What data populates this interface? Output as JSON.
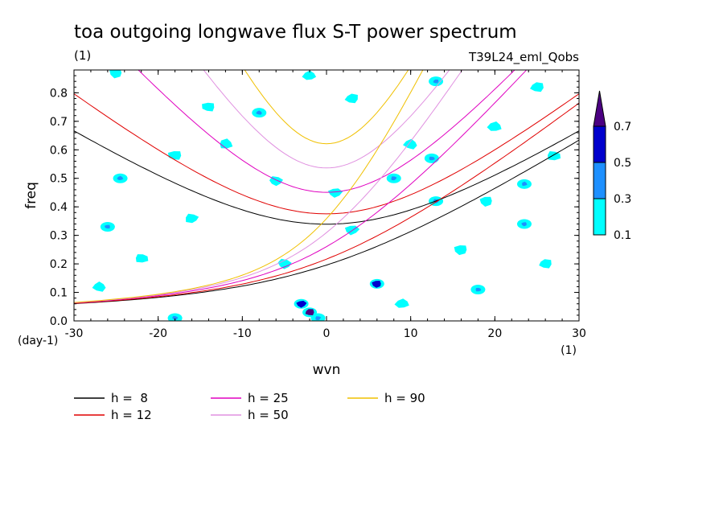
{
  "chart_data": {
    "type": "contour",
    "title": "toa outgoing longwave flux S-T power spectrum",
    "units_label": "(1)",
    "run_label": "T39L24_eml_Qobs",
    "xlabel": "wvn",
    "ylabel": "freq",
    "x_units": "(1)",
    "y_units": "(day-1)",
    "xlim": [
      -30,
      30
    ],
    "ylim": [
      0.0,
      0.88
    ],
    "x_ticks": [
      -30,
      -20,
      -10,
      0,
      10,
      20,
      30
    ],
    "y_ticks": [
      0.0,
      0.1,
      0.2,
      0.3,
      0.4,
      0.5,
      0.6,
      0.7,
      0.8
    ],
    "contour_levels": [
      0.1,
      0.3,
      0.5,
      0.7
    ],
    "colorbar_labels": [
      "0.1",
      "0.3",
      "0.5",
      "0.7"
    ],
    "fill_colors": [
      "#00ffff",
      "#1e90ff",
      "#0000cd",
      "#4b0082"
    ],
    "series": [
      {
        "name": "h =  8",
        "color": "#000000",
        "equivalent_depth": 8
      },
      {
        "name": "h = 12",
        "color": "#e00000",
        "equivalent_depth": 12
      },
      {
        "name": "h = 25",
        "color": "#e000c0",
        "equivalent_depth": 25
      },
      {
        "name": "h = 50",
        "color": "#e090e0",
        "equivalent_depth": 50
      },
      {
        "name": "h = 90",
        "color": "#f0c000",
        "equivalent_depth": 90
      }
    ],
    "patches": [
      {
        "x": -2.0,
        "y": 0.03,
        "level": 0.7
      },
      {
        "x": -3.0,
        "y": 0.06,
        "level": 0.5
      },
      {
        "x": 6.0,
        "y": 0.13,
        "level": 0.5
      },
      {
        "x": 23.5,
        "y": 0.48,
        "level": 0.3
      },
      {
        "x": 12.5,
        "y": 0.57,
        "level": 0.3
      },
      {
        "x": 8.0,
        "y": 0.5,
        "level": 0.3
      },
      {
        "x": 13.0,
        "y": 0.42,
        "level": 0.3
      },
      {
        "x": 23.5,
        "y": 0.34,
        "level": 0.3
      },
      {
        "x": -26.0,
        "y": 0.33,
        "level": 0.3
      },
      {
        "x": 13.0,
        "y": 0.84,
        "level": 0.3
      },
      {
        "x": -8.0,
        "y": 0.73,
        "level": 0.3
      },
      {
        "x": -24.5,
        "y": 0.5,
        "level": 0.3
      },
      {
        "x": 18.0,
        "y": 0.11,
        "level": 0.3
      },
      {
        "x": -1.0,
        "y": 0.01,
        "level": 0.3
      },
      {
        "x": -18.0,
        "y": 0.01,
        "level": 0.3
      },
      {
        "x": -25.0,
        "y": 0.87,
        "level": 0.1
      },
      {
        "x": -14.0,
        "y": 0.75,
        "level": 0.1
      },
      {
        "x": 3.0,
        "y": 0.78,
        "level": 0.1
      },
      {
        "x": 10.0,
        "y": 0.62,
        "level": 0.1
      },
      {
        "x": 20.0,
        "y": 0.68,
        "level": 0.1
      },
      {
        "x": -22.0,
        "y": 0.22,
        "level": 0.1
      },
      {
        "x": -16.0,
        "y": 0.36,
        "level": 0.1
      },
      {
        "x": -5.0,
        "y": 0.2,
        "level": 0.1
      },
      {
        "x": 3.0,
        "y": 0.32,
        "level": 0.1
      },
      {
        "x": 16.0,
        "y": 0.25,
        "level": 0.1
      },
      {
        "x": 26.0,
        "y": 0.2,
        "level": 0.1
      },
      {
        "x": -27.0,
        "y": 0.12,
        "level": 0.1
      },
      {
        "x": 9.0,
        "y": 0.06,
        "level": 0.1
      },
      {
        "x": -12.0,
        "y": 0.62,
        "level": 0.1
      },
      {
        "x": 27.0,
        "y": 0.58,
        "level": 0.1
      },
      {
        "x": -6.0,
        "y": 0.49,
        "level": 0.1
      },
      {
        "x": 1.0,
        "y": 0.45,
        "level": 0.1
      },
      {
        "x": 19.0,
        "y": 0.42,
        "level": 0.1
      },
      {
        "x": -18.0,
        "y": 0.58,
        "level": 0.1
      },
      {
        "x": 25.0,
        "y": 0.82,
        "level": 0.1
      },
      {
        "x": -2.0,
        "y": 0.86,
        "level": 0.1
      }
    ]
  }
}
